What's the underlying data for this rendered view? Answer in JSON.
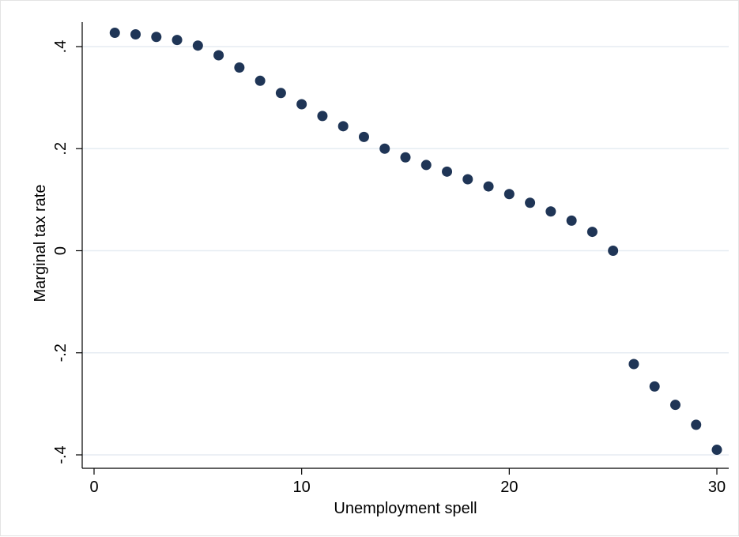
{
  "chart_data": {
    "type": "scatter",
    "title": "",
    "xlabel": "Unemployment spell",
    "ylabel": "Marginal tax rate",
    "xlim": [
      0,
      30
    ],
    "ylim": [
      -0.4,
      0.4
    ],
    "x_ticks": [
      0,
      10,
      20,
      30
    ],
    "x_tick_labels": [
      "0",
      "10",
      "20",
      "30"
    ],
    "y_ticks": [
      -0.4,
      -0.2,
      0,
      0.2,
      0.4
    ],
    "y_tick_labels": [
      "-.4",
      "-.2",
      "0",
      ".2",
      ".4"
    ],
    "grid": "horizontal",
    "legend": "none",
    "colors": {
      "marker": "#1f3556",
      "grid": "#e6ecf2",
      "axis": "#000000"
    },
    "series": [
      {
        "x": [
          1,
          2,
          3,
          4,
          5,
          6,
          7,
          8,
          9,
          10,
          11,
          12,
          13,
          14,
          15,
          16,
          17,
          18,
          19,
          20,
          21,
          22,
          23,
          24,
          25,
          26,
          27,
          28,
          29,
          30
        ],
        "y": [
          0.427,
          0.424,
          0.419,
          0.413,
          0.402,
          0.383,
          0.359,
          0.333,
          0.309,
          0.287,
          0.264,
          0.244,
          0.223,
          0.2,
          0.183,
          0.168,
          0.155,
          0.14,
          0.126,
          0.111,
          0.094,
          0.077,
          0.059,
          0.037,
          0.0,
          -0.222,
          -0.266,
          -0.302,
          -0.341,
          -0.39
        ]
      }
    ]
  }
}
